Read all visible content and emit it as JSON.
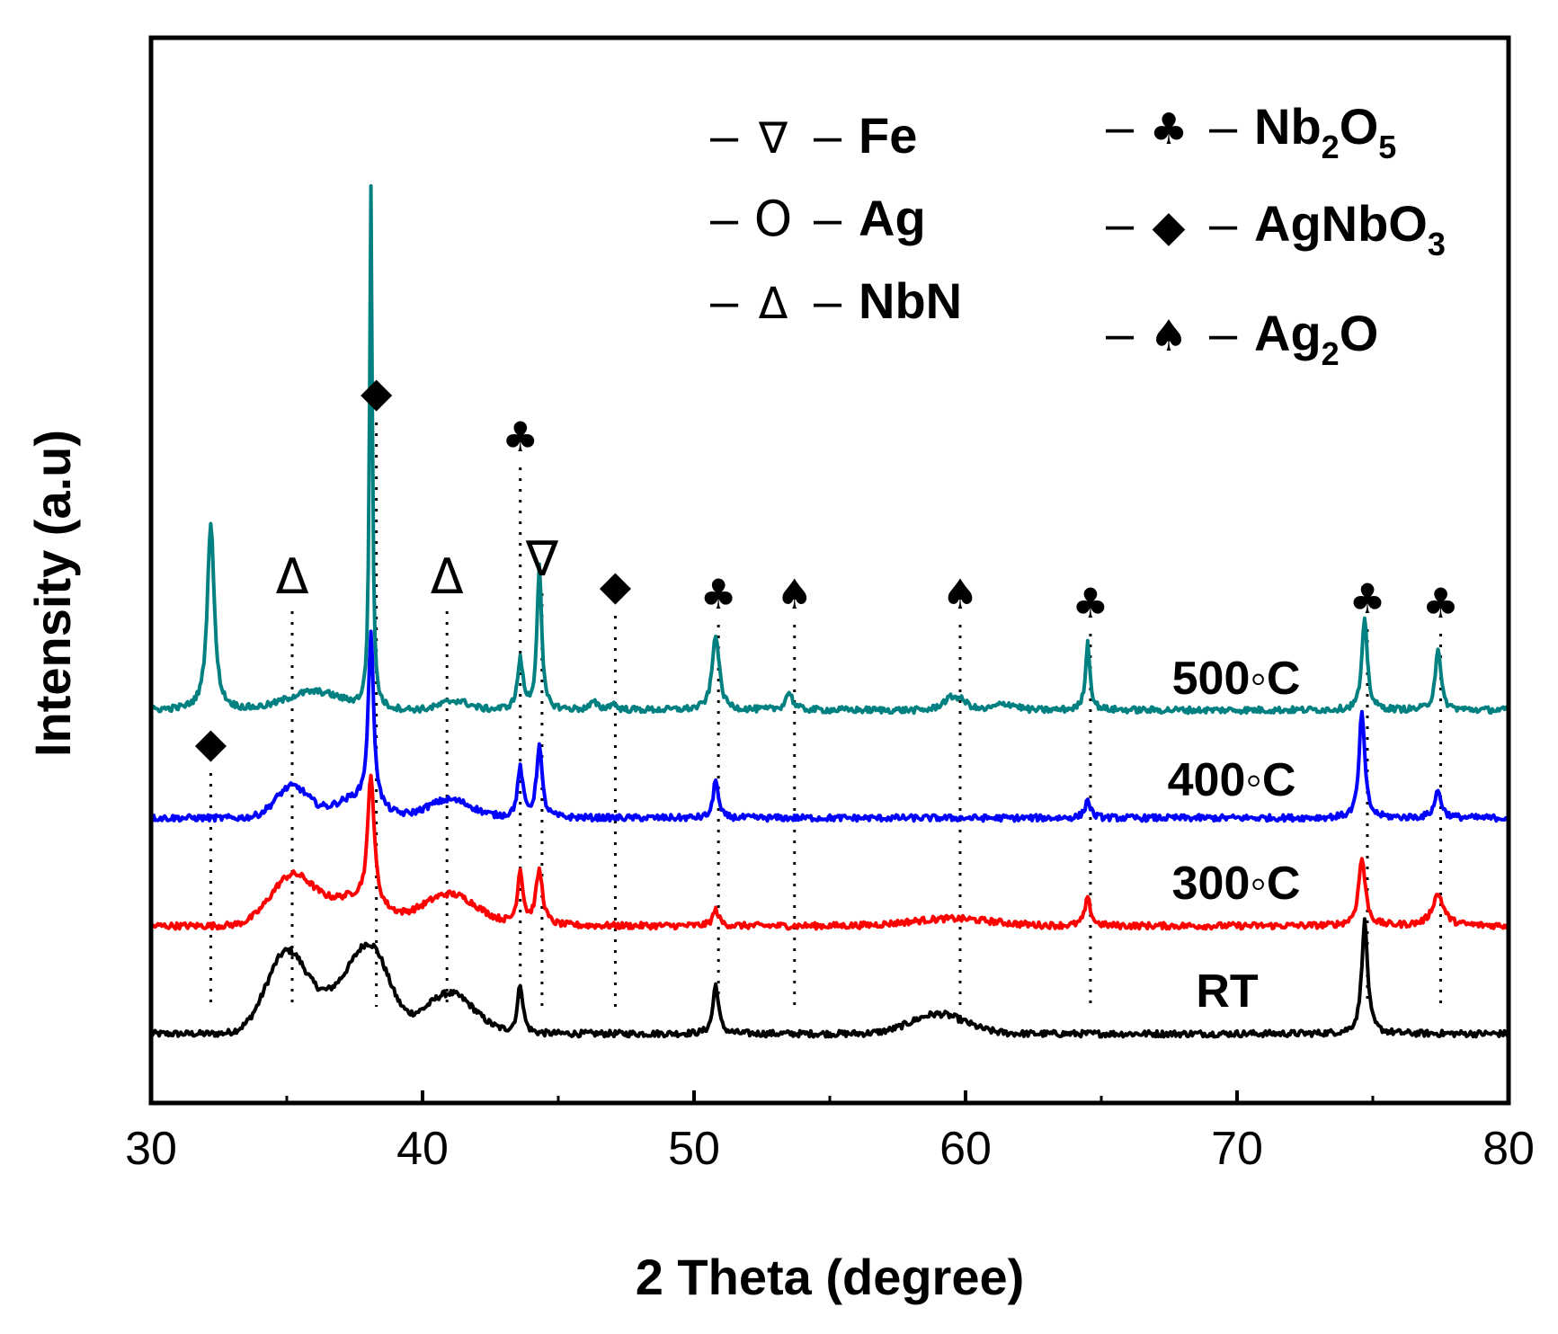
{
  "chart_data": {
    "type": "line",
    "title": "",
    "xlabel": "2 Theta (degree)",
    "ylabel": "Intensity (a.u)",
    "xlim": [
      30,
      80
    ],
    "xticks": [
      30,
      40,
      50,
      60,
      70,
      80
    ],
    "xtick_labels": [
      "30",
      "40",
      "50",
      "60",
      "70",
      "80"
    ],
    "yticks": [],
    "series": [
      {
        "name": "RT",
        "color": "#000000",
        "baseline": 0.2,
        "broad": [
          [
            35.0,
            0.9,
            0.75
          ],
          [
            37.5,
            0.6,
            1.0
          ],
          [
            38.2,
            0.5,
            0.6
          ],
          [
            41.0,
            0.45,
            0.9
          ],
          [
            59.0,
            0.22,
            1.0
          ]
        ],
        "sharp": [
          [
            43.6,
            0.55,
            0.12
          ],
          [
            50.8,
            0.55,
            0.12
          ],
          [
            74.7,
            1.25,
            0.13
          ]
        ]
      },
      {
        "name": "300◦C",
        "color": "#ff0000",
        "baseline": 1.4,
        "broad": [
          [
            35.2,
            0.55,
            0.8
          ],
          [
            37.5,
            0.3,
            1.0
          ],
          [
            41.0,
            0.35,
            1.0
          ],
          [
            59.5,
            0.08,
            1.5
          ]
        ],
        "sharp": [
          [
            38.1,
            1.45,
            0.14
          ],
          [
            43.6,
            0.6,
            0.12
          ],
          [
            44.3,
            0.6,
            0.15
          ],
          [
            50.8,
            0.18,
            0.13
          ],
          [
            64.5,
            0.3,
            0.13
          ],
          [
            74.6,
            0.75,
            0.15
          ],
          [
            77.4,
            0.35,
            0.25
          ]
        ]
      },
      {
        "name": "400◦C",
        "color": "#0000ff",
        "baseline": 2.6,
        "broad": [
          [
            35.2,
            0.35,
            0.6
          ],
          [
            37.5,
            0.2,
            0.8
          ],
          [
            41.0,
            0.2,
            0.8
          ]
        ],
        "sharp": [
          [
            38.1,
            1.9,
            0.12
          ],
          [
            43.6,
            0.55,
            0.12
          ],
          [
            44.3,
            0.8,
            0.12
          ],
          [
            50.8,
            0.45,
            0.1
          ],
          [
            64.5,
            0.2,
            0.12
          ],
          [
            74.6,
            1.2,
            0.12
          ],
          [
            77.4,
            0.3,
            0.15
          ]
        ]
      },
      {
        "name": "500◦C",
        "color": "#008080",
        "baseline": 3.8,
        "broad": [
          [
            36.0,
            0.2,
            1.0
          ],
          [
            41.2,
            0.1,
            0.5
          ],
          [
            59.6,
            0.15,
            0.4
          ],
          [
            61.5,
            0.07,
            0.4
          ]
        ],
        "sharp": [
          [
            32.2,
            2.1,
            0.15
          ],
          [
            38.1,
            5.8,
            0.06
          ],
          [
            43.6,
            0.55,
            0.12
          ],
          [
            44.3,
            1.6,
            0.1
          ],
          [
            46.3,
            0.08,
            0.15
          ],
          [
            47.0,
            0.07,
            0.15
          ],
          [
            50.8,
            0.85,
            0.15
          ],
          [
            53.5,
            0.2,
            0.15
          ],
          [
            64.5,
            0.75,
            0.1
          ],
          [
            74.7,
            1.0,
            0.12
          ],
          [
            77.4,
            0.7,
            0.12
          ]
        ]
      }
    ],
    "peak_markers": [
      {
        "x": 32.2,
        "symbol": "◆",
        "phase": "AgNbO3",
        "line_top": 3.1
      },
      {
        "x": 35.2,
        "symbol": "Δ",
        "phase": "NbN",
        "line_top": 4.9
      },
      {
        "x": 38.3,
        "symbol": "◆",
        "phase": "AgNbO3",
        "line_top": 7.0
      },
      {
        "x": 40.9,
        "symbol": "Δ",
        "phase": "NbN",
        "line_top": 4.9
      },
      {
        "x": 43.6,
        "symbol": "♣",
        "phase": "Nb2O5",
        "line_top": 6.5
      },
      {
        "x": 44.4,
        "symbol": "∇",
        "phase": "Fe",
        "line_top": 5.1
      },
      {
        "x": 47.1,
        "symbol": "◆",
        "phase": "AgNbO3",
        "line_top": 4.85
      },
      {
        "x": 50.9,
        "symbol": "♣",
        "phase": "Nb2O5",
        "line_top": 4.75
      },
      {
        "x": 53.7,
        "symbol": "♠",
        "phase": "Ag2O",
        "line_top": 4.75
      },
      {
        "x": 59.8,
        "symbol": "♠",
        "phase": "Ag2O",
        "line_top": 4.75
      },
      {
        "x": 64.6,
        "symbol": "♣",
        "phase": "Nb2O5",
        "line_top": 4.65
      },
      {
        "x": 74.8,
        "symbol": "♣",
        "phase": "Nb2O5",
        "line_top": 4.7
      },
      {
        "x": 77.5,
        "symbol": "♣",
        "phase": "Nb2O5",
        "line_top": 4.65
      }
    ],
    "legend": [
      {
        "symbol": "∇",
        "text": "Fe",
        "sub": "",
        "tail": ""
      },
      {
        "symbol": "O",
        "text": "Ag",
        "sub": "",
        "tail": ""
      },
      {
        "symbol": "Δ",
        "text": "NbN",
        "sub": "",
        "tail": ""
      },
      {
        "symbol": "♣",
        "text": "Nb",
        "sub": "2",
        "tail": "O",
        "sub2": "5"
      },
      {
        "symbol": "◆",
        "text": "AgNbO",
        "sub": "3",
        "tail": ""
      },
      {
        "symbol": "♠",
        "text": "Ag",
        "sub": "2",
        "tail": "O"
      }
    ]
  }
}
